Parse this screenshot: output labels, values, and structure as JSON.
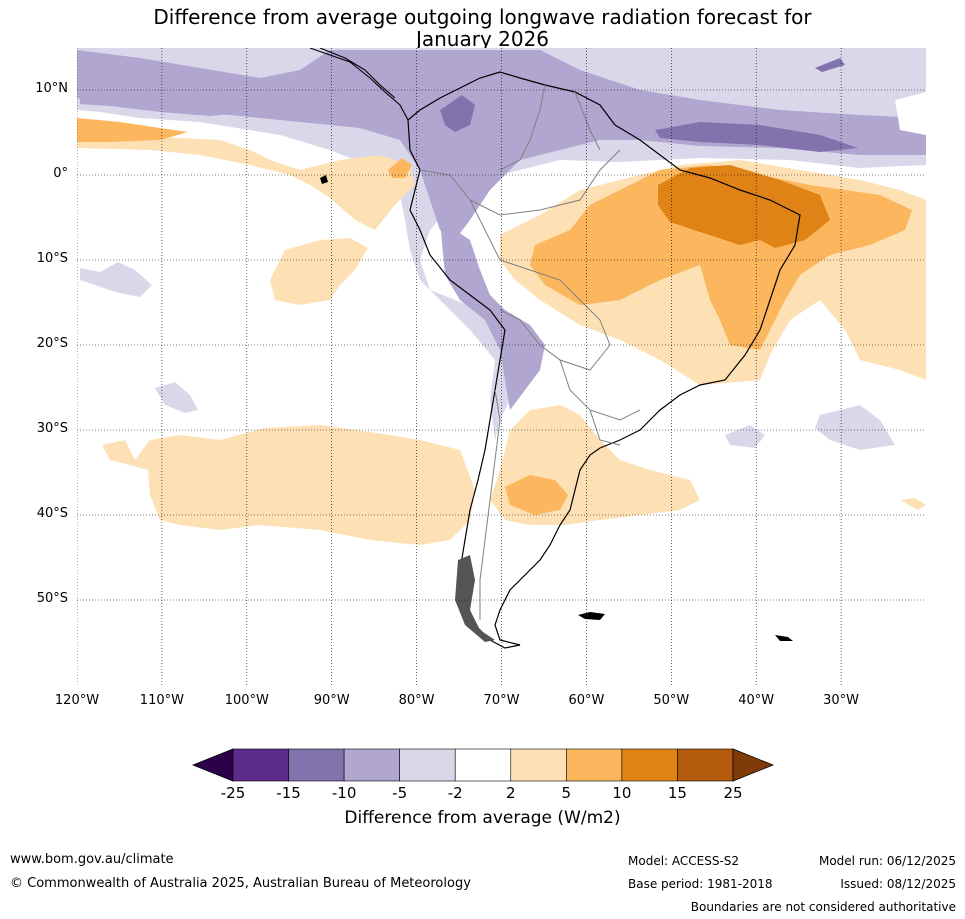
{
  "title": {
    "line1": "Difference from average outgoing longwave radiation forecast for",
    "line2": "January 2026"
  },
  "map": {
    "region": "South America",
    "lat_labels": [
      "10°N",
      "0°",
      "10°S",
      "20°S",
      "30°S",
      "40°S",
      "50°S"
    ],
    "lat_values": [
      10,
      0,
      -10,
      -20,
      -30,
      -40,
      -50
    ],
    "lon_labels": [
      "120°W",
      "110°W",
      "100°W",
      "90°W",
      "80°W",
      "70°W",
      "60°W",
      "50°W",
      "40°W",
      "30°W"
    ],
    "lon_values": [
      -120,
      -110,
      -100,
      -90,
      -80,
      -70,
      -60,
      -50,
      -40,
      -30
    ],
    "lon_range": [
      -120,
      -20
    ],
    "lat_range": [
      -60,
      15
    ]
  },
  "colorbar": {
    "title": "Difference from average (W/m2)",
    "ticks": [
      "-25",
      "-15",
      "-10",
      "-5",
      "-2",
      "2",
      "5",
      "10",
      "15",
      "25"
    ],
    "colors": [
      "#5b2a8a",
      "#8272ad",
      "#b0a6d0",
      "#d8d8ea",
      "#ffffff",
      "#fde0b4",
      "#fbb65e",
      "#e08316",
      "#b45a0c"
    ],
    "under_color": "#2d004b",
    "over_color": "#7f3b08"
  },
  "palette": {
    "neg_strong": "#8272ad",
    "neg_mid": "#b0a6d0",
    "neg_light": "#d8d8ea",
    "pos_light": "#fde0b4",
    "pos_mid": "#fbb65e",
    "pos_strong": "#e08316",
    "coast": "#000000",
    "border": "#808080"
  },
  "footer": {
    "website": "www.bom.gov.au/climate",
    "copyright": "© Commonwealth of Australia 2025, Australian Bureau of Meteorology",
    "model": "Model: ACCESS-S2",
    "base_period": "Base period: 1981-2018",
    "model_run": "Model run: 06/12/2025",
    "issued": "Issued: 08/12/2025",
    "disclaimer": "Boundaries are not considered authoritative"
  }
}
